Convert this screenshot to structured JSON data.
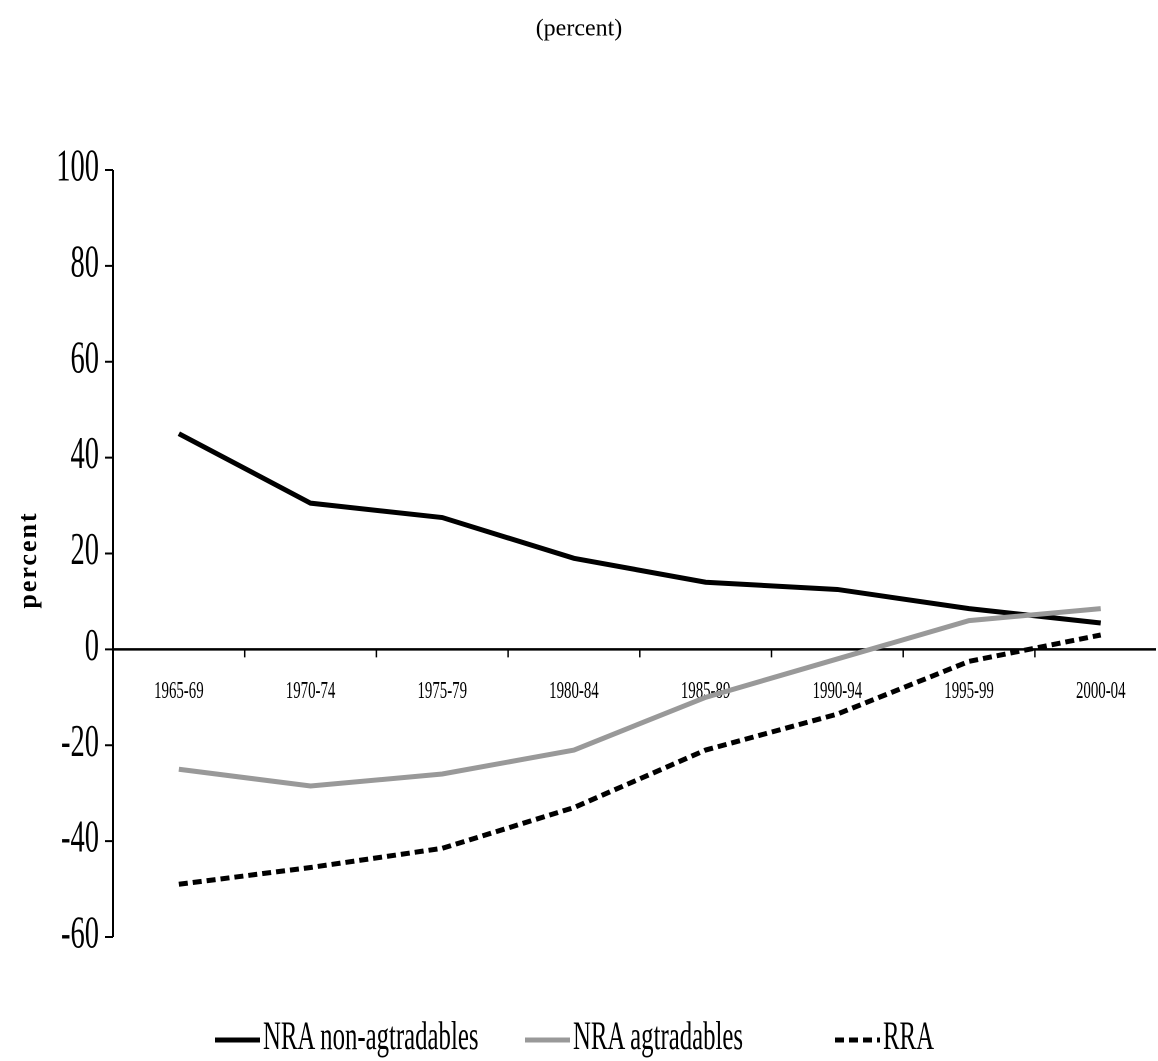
{
  "chart_data": {
    "type": "line",
    "title": "(percent)",
    "y_label": "percent",
    "categories": [
      "1965-69",
      "1970-74",
      "1975-79",
      "1980-84",
      "1985-89",
      "1990-94",
      "1995-99",
      "2000-04"
    ],
    "series": [
      {
        "name": "NRA non-agtradables",
        "color": "#000000",
        "dash": false,
        "values": [
          45,
          30.5,
          27.5,
          19,
          14,
          12.5,
          8.5,
          5.5
        ]
      },
      {
        "name": "NRA agtradables",
        "color": "#999999",
        "dash": false,
        "values": [
          -25,
          -28.5,
          -26,
          -21,
          -10,
          -2,
          6,
          8.5
        ]
      },
      {
        "name": "RRA",
        "color": "#000000",
        "dash": true,
        "values": [
          -49,
          -45.5,
          -41.5,
          -33,
          -21,
          -13.5,
          -2.5,
          3
        ]
      }
    ],
    "ylim": [
      -60,
      100
    ],
    "yticks": [
      -60,
      -40,
      -20,
      0,
      20,
      40,
      60,
      80,
      100
    ],
    "grid": false,
    "legend": "bottom"
  }
}
